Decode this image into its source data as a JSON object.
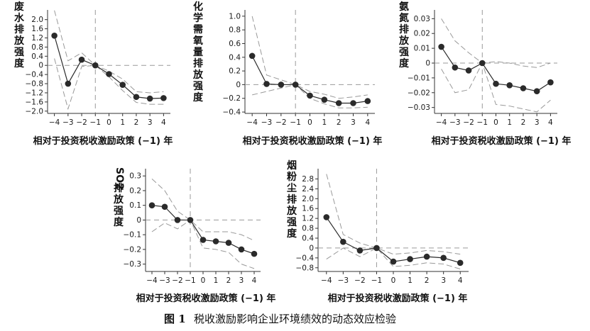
{
  "caption": {
    "number": "图 1",
    "text": "税收激励影响企业环境绩效的动态效应检验"
  },
  "colors": {
    "line": "#2a2a2a",
    "ci": "#999999",
    "ref": "#9a9a9a",
    "axis": "#333333"
  },
  "chart_data": [
    {
      "type": "line",
      "ylabel": "废水排放强度",
      "xlabel": "相对于投资税收激励政策 (−1) 年",
      "x": [
        -4,
        -3,
        -2,
        -1,
        0,
        1,
        2,
        3,
        4
      ],
      "xticks": [
        "−4",
        "−3",
        "−2",
        "−1",
        "0",
        "1",
        "2",
        "3",
        "4"
      ],
      "yticks": [
        2.0,
        1.6,
        1.2,
        0.8,
        0.4,
        0,
        -0.4,
        -0.8,
        -1.2,
        -1.6,
        -2.0
      ],
      "ytick_labels": [
        "2.0",
        "1.6",
        "1.2",
        "0.8",
        "0.4",
        "0",
        "−0.4",
        "−0.8",
        "−1.2",
        "−1.6",
        "−2.0"
      ],
      "ylim": [
        -2.1,
        2.3
      ],
      "y": [
        1.3,
        -0.8,
        0.25,
        0,
        -0.38,
        -0.85,
        -1.38,
        -1.45,
        -1.43
      ],
      "upper": [
        2.4,
        0.2,
        0.55,
        0,
        -0.25,
        -0.6,
        -1.15,
        -1.2,
        -1.15
      ],
      "lower": [
        0.3,
        -1.9,
        -0.05,
        0,
        -0.5,
        -1.1,
        -1.62,
        -1.7,
        -1.7
      ]
    },
    {
      "type": "line",
      "ylabel": "化学需氧量排放强度",
      "xlabel": "相对于投资税收激励政策 (−1) 年",
      "x": [
        -4,
        -3,
        -2,
        -1,
        0,
        1,
        2,
        3,
        4
      ],
      "xticks": [
        "−4",
        "−3",
        "−2",
        "−1",
        "0",
        "1",
        "2",
        "3",
        "4"
      ],
      "yticks": [
        1.0,
        0.8,
        0.6,
        0.4,
        0.2,
        0,
        -0.2,
        -0.4
      ],
      "ytick_labels": [
        "1.0",
        "0.8",
        "0.6",
        "0.4",
        "0.2",
        "0",
        "−0.2",
        "−0.4"
      ],
      "ylim": [
        -0.42,
        1.05
      ],
      "y": [
        0.42,
        0.01,
        0.0,
        0,
        -0.16,
        -0.22,
        -0.27,
        -0.27,
        -0.24
      ],
      "upper": [
        1.0,
        0.14,
        0.07,
        0,
        -0.1,
        -0.14,
        -0.2,
        -0.18,
        -0.15
      ],
      "lower": [
        -0.15,
        -0.1,
        -0.05,
        0,
        -0.2,
        -0.28,
        -0.34,
        -0.34,
        -0.33
      ]
    },
    {
      "type": "line",
      "ylabel": "氨氮排放强度",
      "xlabel": "相对于投资税收激励政策 (−1) 年",
      "x": [
        -4,
        -3,
        -2,
        -1,
        0,
        1,
        2,
        3,
        4
      ],
      "xticks": [
        "−4",
        "−3",
        "−2",
        "−1",
        "0",
        "1",
        "2",
        "3",
        "4"
      ],
      "yticks": [
        0.03,
        0.02,
        0.01,
        0,
        -0.01,
        -0.02,
        -0.03
      ],
      "ytick_labels": [
        "0.03",
        "0.02",
        "0.01",
        "0",
        "−0.01",
        "−0.02",
        "−0.03"
      ],
      "ylim": [
        -0.034,
        0.034
      ],
      "y": [
        0.011,
        -0.003,
        -0.005,
        0,
        -0.014,
        -0.015,
        -0.017,
        -0.019,
        -0.013
      ],
      "upper": [
        0.03,
        0.015,
        0.007,
        0,
        0.001,
        0.0,
        -0.002,
        -0.003,
        0.0
      ],
      "lower": [
        -0.004,
        -0.02,
        -0.018,
        0,
        -0.028,
        -0.029,
        -0.031,
        -0.033,
        -0.025
      ]
    },
    {
      "type": "line",
      "ylabel": "SO2排放强度",
      "xlabel": "相对于投资税收激励政策 (−1) 年",
      "x": [
        -4,
        -3,
        -2,
        -1,
        0,
        1,
        2,
        3,
        4
      ],
      "xticks": [
        "−4",
        "−3",
        "−2",
        "−1",
        "0",
        "1",
        "2",
        "3",
        "4"
      ],
      "yticks": [
        0.3,
        0.2,
        0.1,
        0,
        -0.1,
        -0.2,
        -0.3
      ],
      "ytick_labels": [
        "0.3",
        "0.2",
        "0.1",
        "0",
        "−0.1",
        "−0.2",
        "−0.3"
      ],
      "ylim": [
        -0.35,
        0.33
      ],
      "y": [
        0.1,
        0.09,
        0.0,
        0,
        -0.135,
        -0.145,
        -0.155,
        -0.2,
        -0.23
      ],
      "upper": [
        0.28,
        0.2,
        0.06,
        0,
        -0.08,
        -0.08,
        -0.08,
        -0.1,
        -0.14
      ],
      "lower": [
        -0.08,
        -0.02,
        -0.06,
        0,
        -0.19,
        -0.2,
        -0.22,
        -0.3,
        -0.33
      ]
    },
    {
      "type": "line",
      "ylabel": "烟粉尘排放强度",
      "xlabel": "相对于投资税收激励政策 (−1) 年",
      "x": [
        -4,
        -3,
        -2,
        -1,
        0,
        1,
        2,
        3,
        4
      ],
      "xticks": [
        "−4",
        "−3",
        "−2",
        "−1",
        "0",
        "1",
        "2",
        "3",
        "4"
      ],
      "yticks": [
        2.8,
        2.4,
        2.0,
        1.6,
        1.2,
        0.8,
        0.4,
        0,
        -0.4,
        -0.8
      ],
      "ytick_labels": [
        "2.8",
        "2.4",
        "2.0",
        "1.6",
        "1.2",
        "0.8",
        "0.4",
        "0",
        "−0.4",
        "−0.8"
      ],
      "ylim": [
        -0.95,
        3.1
      ],
      "y": [
        1.25,
        0.25,
        -0.1,
        0,
        -0.55,
        -0.45,
        -0.35,
        -0.4,
        -0.6
      ],
      "upper": [
        3.0,
        0.55,
        0.2,
        0,
        -0.25,
        -0.2,
        -0.1,
        -0.15,
        -0.25
      ],
      "lower": [
        -0.45,
        0.0,
        -0.35,
        0,
        -0.75,
        -0.7,
        -0.6,
        -0.65,
        -0.85
      ]
    }
  ]
}
